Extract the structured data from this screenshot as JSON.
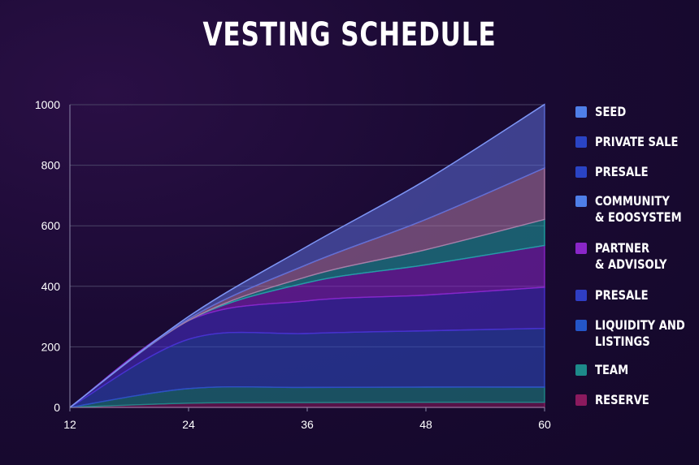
{
  "title": "VESTING SCHEDULE",
  "colors": {
    "background": "#1a0a33",
    "grid": "#4a4466",
    "axis_text": "#ffffff"
  },
  "chart_data": {
    "type": "area",
    "stacked": true,
    "title": "VESTING SCHEDULE",
    "xlabel": "",
    "ylabel": "",
    "x": [
      12,
      24,
      36,
      48,
      60
    ],
    "xticks": [
      "12",
      "24",
      "36",
      "48",
      "60"
    ],
    "yticks": [
      "0",
      "200",
      "400",
      "600",
      "800",
      "1000"
    ],
    "xlim": [
      12,
      60
    ],
    "ylim": [
      0,
      1000
    ],
    "grid": true,
    "legend_position": "right",
    "series": [
      {
        "name": "RESERVE",
        "color": "#8b1a5e",
        "values": [
          0,
          14,
          16,
          17,
          17
        ]
      },
      {
        "name": "TEAM",
        "color": "#1d8a8a",
        "values": [
          0,
          48,
          50,
          50,
          50
        ]
      },
      {
        "name": "LIQUIDITY AND\nLISTINGS",
        "color": "#2f4cc8",
        "values": [
          0,
          163,
          178,
          186,
          194
        ]
      },
      {
        "name": "PRESALE",
        "color": "#4a2fd0",
        "values": [
          0,
          62,
          108,
          118,
          136
        ]
      },
      {
        "name": "PARTNER\n& ADVISOLY",
        "color": "#8a26c8",
        "values": [
          0,
          0,
          60,
          100,
          138
        ]
      },
      {
        "name": "COMMUNITY\n& EOOSYSTEM",
        "color": "#1ea3a3",
        "values": [
          0,
          0,
          20,
          50,
          86
        ]
      },
      {
        "name": "PRESALE",
        "color": "#b07aa8",
        "values": [
          0,
          5,
          40,
          100,
          170
        ]
      },
      {
        "name": "PRIVATE SALE",
        "color": "#5d6ed8",
        "values": [
          0,
          8,
          60,
          130,
          210
        ]
      },
      {
        "name": "SEED",
        "color": "#4f7fe8",
        "values": [
          0,
          0,
          0,
          0,
          0
        ]
      }
    ]
  },
  "legend": [
    {
      "label": "SEED",
      "color": "#4f7fe8"
    },
    {
      "label": "PRIVATE SALE",
      "color": "#2a44c4"
    },
    {
      "label": "PRESALE",
      "color": "#2a44c4"
    },
    {
      "label": "COMMUNITY\n& EOOSYSTEM",
      "color": "#4f7fe8"
    },
    {
      "label": "PARTNER\n& ADVISOLY",
      "color": "#8a26c8"
    },
    {
      "label": "PRESALE",
      "color": "#2f3ec4"
    },
    {
      "label": "LIQUIDITY AND\nLISTINGS",
      "color": "#2456c8"
    },
    {
      "label": "TEAM",
      "color": "#1d8a8a"
    },
    {
      "label": "RESERVE",
      "color": "#8b1a5e"
    }
  ]
}
